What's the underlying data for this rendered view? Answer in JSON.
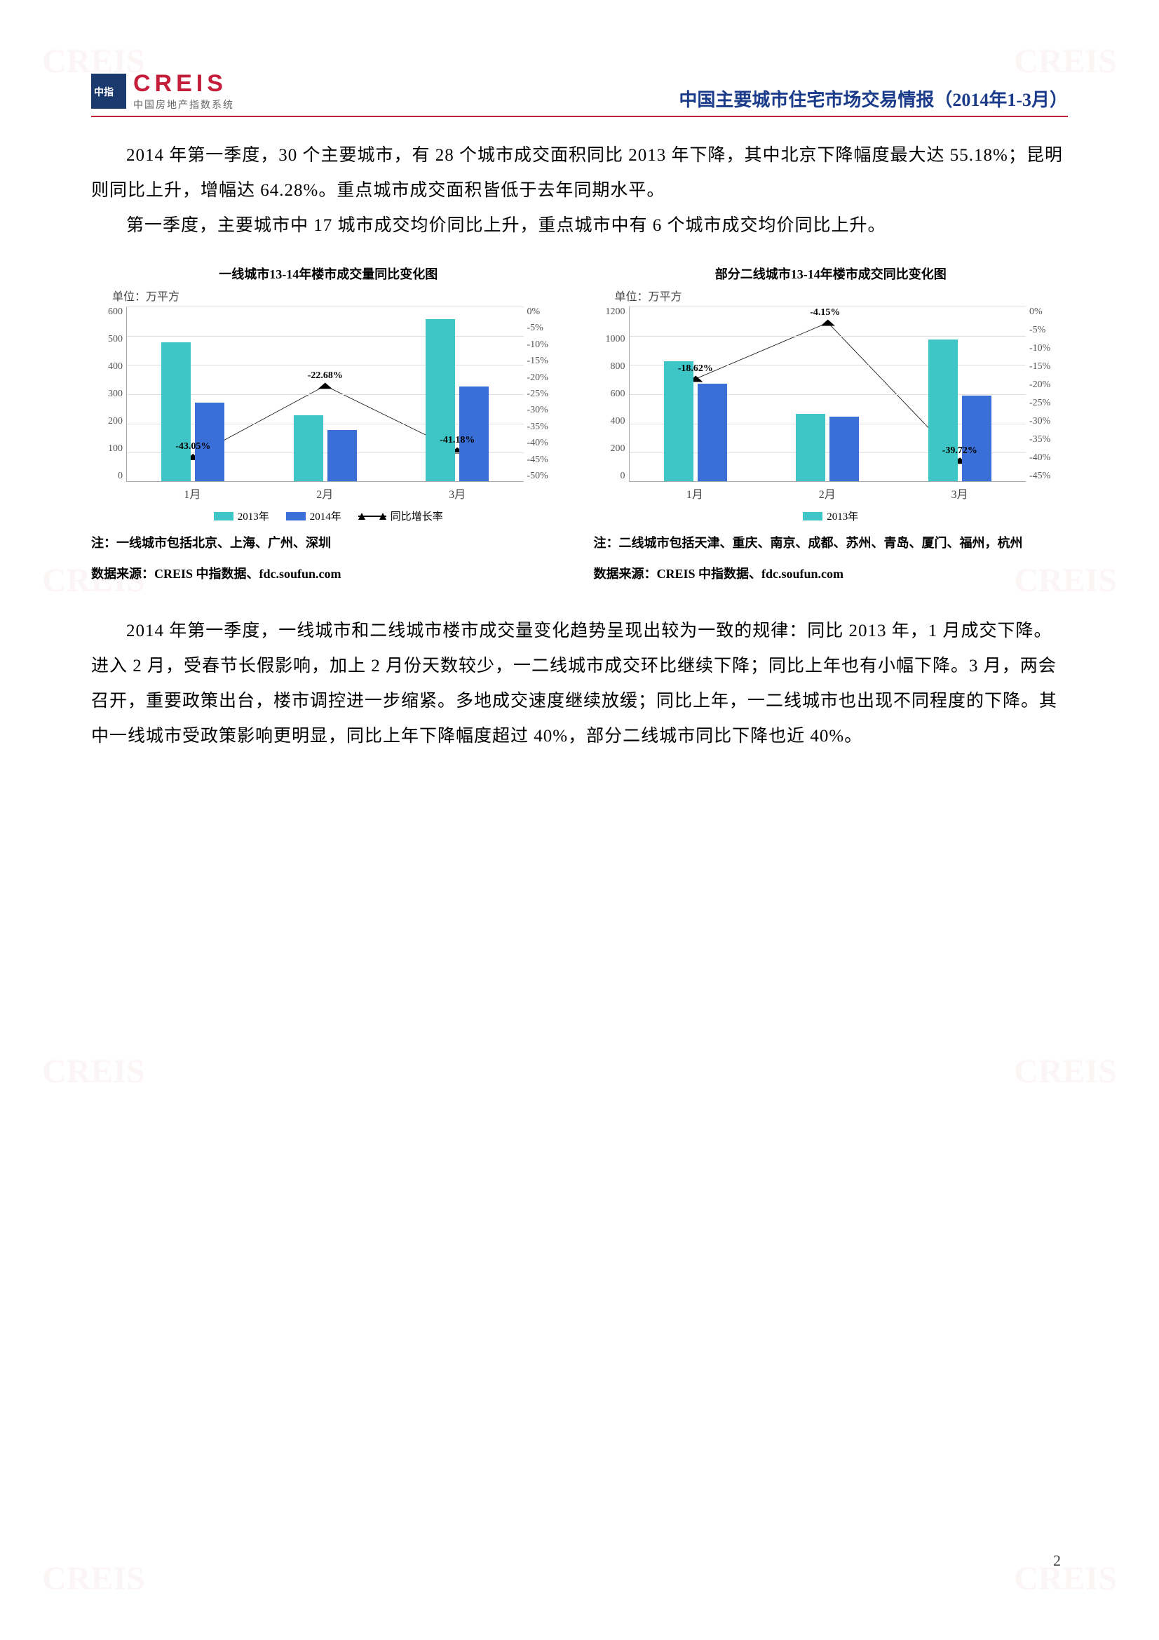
{
  "header": {
    "logo_main": "CREIS",
    "logo_sub": "中国房地产指数系统",
    "title": "中国主要城市住宅市场交易情报（2014年1-3月）"
  },
  "para1": "2014 年第一季度，30 个主要城市，有 28 个城市成交面积同比 2013 年下降，其中北京下降幅度最大达 55.18%；昆明则同比上升，增幅达 64.28%。重点城市成交面积皆低于去年同期水平。",
  "para2": "第一季度，主要城市中 17 城市成交均价同比上升，重点城市中有 6 个城市成交均价同比上升。",
  "chart1": {
    "title": "一线城市13-14年楼市成交量同比变化图",
    "unit": "单位：万平方",
    "categories": [
      "1月",
      "2月",
      "3月"
    ],
    "series_2013": [
      475,
      225,
      555
    ],
    "series_2014": [
      270,
      175,
      325
    ],
    "growth": [
      -43.05,
      -22.68,
      -41.18
    ],
    "growth_labels": [
      "-43.05%",
      "-22.68%",
      "-41.18%"
    ],
    "y_left_max": 600,
    "y_left_step": 100,
    "y_left_ticks": [
      "600",
      "500",
      "400",
      "300",
      "200",
      "100",
      "0"
    ],
    "y_right_ticks": [
      "0%",
      "-5%",
      "-10%",
      "-15%",
      "-20%",
      "-25%",
      "-30%",
      "-35%",
      "-40%",
      "-45%",
      "-50%"
    ],
    "y_right_min": -50,
    "y_right_max": 0,
    "color_2013": "#3ec6c6",
    "color_2014": "#3a6fd8",
    "line_color": "#000000",
    "legend": [
      "2013年",
      "2014年",
      "同比增长率"
    ],
    "note1": "注：一线城市包括北京、上海、广州、深圳",
    "note2": "数据来源：CREIS 中指数据、fdc.soufun.com"
  },
  "chart2": {
    "title": "部分二线城市13-14年楼市成交同比变化图",
    "unit": "单位：万平方",
    "categories": [
      "1月",
      "2月",
      "3月"
    ],
    "series_2013": [
      820,
      460,
      970
    ],
    "series_2014": [
      665,
      440,
      585
    ],
    "growth": [
      -18.62,
      -4.15,
      -39.72
    ],
    "growth_labels": [
      "-18.62%",
      "-4.15%",
      "-39.72%"
    ],
    "y_left_max": 1200,
    "y_left_step": 200,
    "y_left_ticks": [
      "1200",
      "1000",
      "800",
      "600",
      "400",
      "200",
      "0"
    ],
    "y_right_ticks": [
      "0%",
      "-5%",
      "-10%",
      "-15%",
      "-20%",
      "-25%",
      "-30%",
      "-35%",
      "-40%",
      "-45%"
    ],
    "y_right_min": -45,
    "y_right_max": 0,
    "color_2013": "#3ec6c6",
    "color_2014": "#3a6fd8",
    "line_color": "#000000",
    "legend": [
      "2013年"
    ],
    "note1": "注：二线城市包括天津、重庆、南京、成都、苏州、青岛、厦门、福州，杭州",
    "note2": "数据来源：CREIS 中指数据、fdc.soufun.com"
  },
  "para3": "2014 年第一季度，一线城市和二线城市楼市成交量变化趋势呈现出较为一致的规律：同比 2013 年，1 月成交下降。进入 2 月，受春节长假影响，加上 2 月份天数较少，一二线城市成交环比继续下降；同比上年也有小幅下降。3 月，两会召开，重要政策出台，楼市调控进一步缩紧。多地成交速度继续放缓；同比上年，一二线城市也出现不同程度的下降。其中一线城市受政策影响更明显，同比上年下降幅度超过 40%，部分二线城市同比下降也近 40%。",
  "page_number": "2",
  "watermark_text": "CREIS"
}
